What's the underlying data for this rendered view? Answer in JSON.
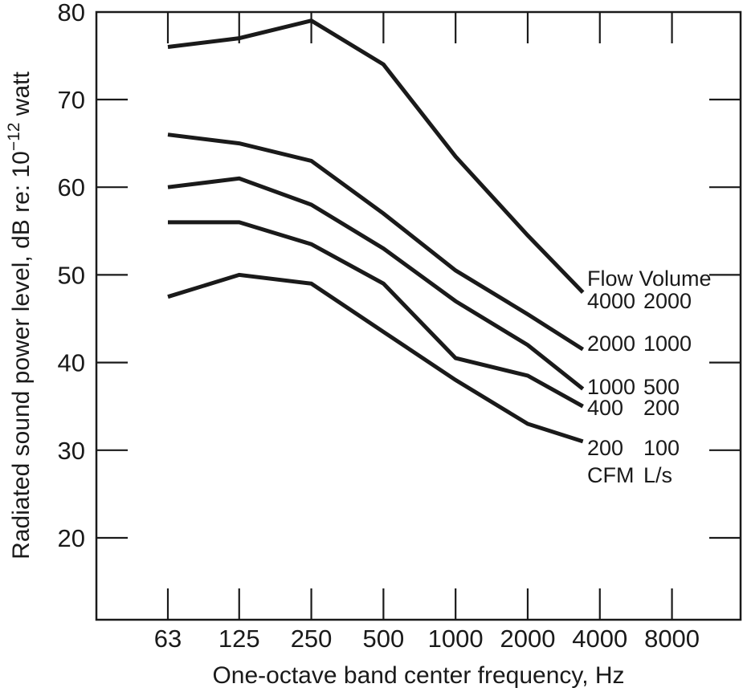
{
  "figure": {
    "background": "#ffffff",
    "ink_color": "#1a1a1a",
    "y_axis": {
      "title_pre": "Radiated sound power level, dB re: 10",
      "title_sup": "−12",
      "title_post": " watt"
    },
    "x_axis": {
      "title": "One-octave band center frequency, Hz"
    },
    "legend": {
      "header": "Flow Volume",
      "rows": [
        {
          "cfm": "4000",
          "ls": "2000"
        },
        {
          "cfm": "2000",
          "ls": "1000"
        },
        {
          "cfm": "1000",
          "ls": "500"
        },
        {
          "cfm": "400",
          "ls": "200"
        },
        {
          "cfm": "200",
          "ls": "100"
        }
      ],
      "units": {
        "cfm": "CFM",
        "ls": "L/s"
      }
    }
  },
  "chart_data": {
    "type": "line",
    "x_scale": "log-octave",
    "x": [
      63,
      125,
      250,
      500,
      1000,
      2000,
      3400
    ],
    "series": [
      {
        "name": "4000 CFM / 2000 L/s",
        "values": [
          76,
          77,
          79,
          74,
          63.5,
          54.5,
          48
        ]
      },
      {
        "name": "2000 CFM / 1000 L/s",
        "values": [
          66,
          65,
          63,
          57,
          50.5,
          45.5,
          41.5
        ]
      },
      {
        "name": "1000 CFM / 500 L/s",
        "values": [
          60,
          61,
          58,
          53,
          47,
          42,
          37
        ]
      },
      {
        "name": "400 CFM / 200 L/s",
        "values": [
          56,
          56,
          53.5,
          49,
          40.5,
          38.5,
          35
        ]
      },
      {
        "name": "200 CFM / 100 L/s",
        "values": [
          47.5,
          50,
          49,
          43.5,
          38,
          33,
          31
        ]
      }
    ],
    "xlabel": "One-octave band center frequency, Hz",
    "ylabel": "Radiated sound power level, dB re: 10^−12 watt",
    "xticks": [
      63,
      125,
      250,
      500,
      1000,
      2000,
      4000,
      8000
    ],
    "yticks": [
      80,
      70,
      60,
      50,
      40,
      30,
      20
    ],
    "ylim": [
      20,
      80
    ],
    "grid": false,
    "legend_position": "right-inside",
    "line_color": "#1a1a1a"
  }
}
